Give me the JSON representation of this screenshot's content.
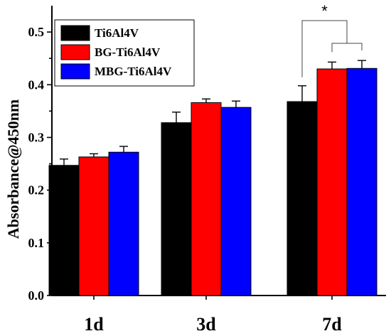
{
  "chart_data": {
    "type": "bar",
    "title": "",
    "xlabel": "",
    "ylabel": "Absorbance@450nm",
    "ylim": [
      0,
      0.55
    ],
    "yticks": [
      "0.0",
      "0.1",
      "0.2",
      "0.3",
      "0.4",
      "0.5"
    ],
    "categories": [
      "1d",
      "3d",
      "7d"
    ],
    "series": [
      {
        "name": "Ti6Al4V",
        "color": "#000000",
        "values": [
          0.247,
          0.328,
          0.368
        ],
        "errors": [
          0.012,
          0.02,
          0.03
        ]
      },
      {
        "name": "BG-Ti6Al4V",
        "color": "#ff0000",
        "values": [
          0.263,
          0.366,
          0.43
        ],
        "errors": [
          0.006,
          0.007,
          0.013
        ]
      },
      {
        "name": "MBG-Ti6Al4V",
        "color": "#0000ff",
        "values": [
          0.272,
          0.357,
          0.431
        ],
        "errors": [
          0.011,
          0.012,
          0.015
        ]
      }
    ],
    "legend_position": "top-left",
    "annotations": [
      {
        "text": "*",
        "category": "7d",
        "comparison": "Ti6Al4V vs BG-Ti6Al4V / MBG-Ti6Al4V"
      }
    ]
  }
}
